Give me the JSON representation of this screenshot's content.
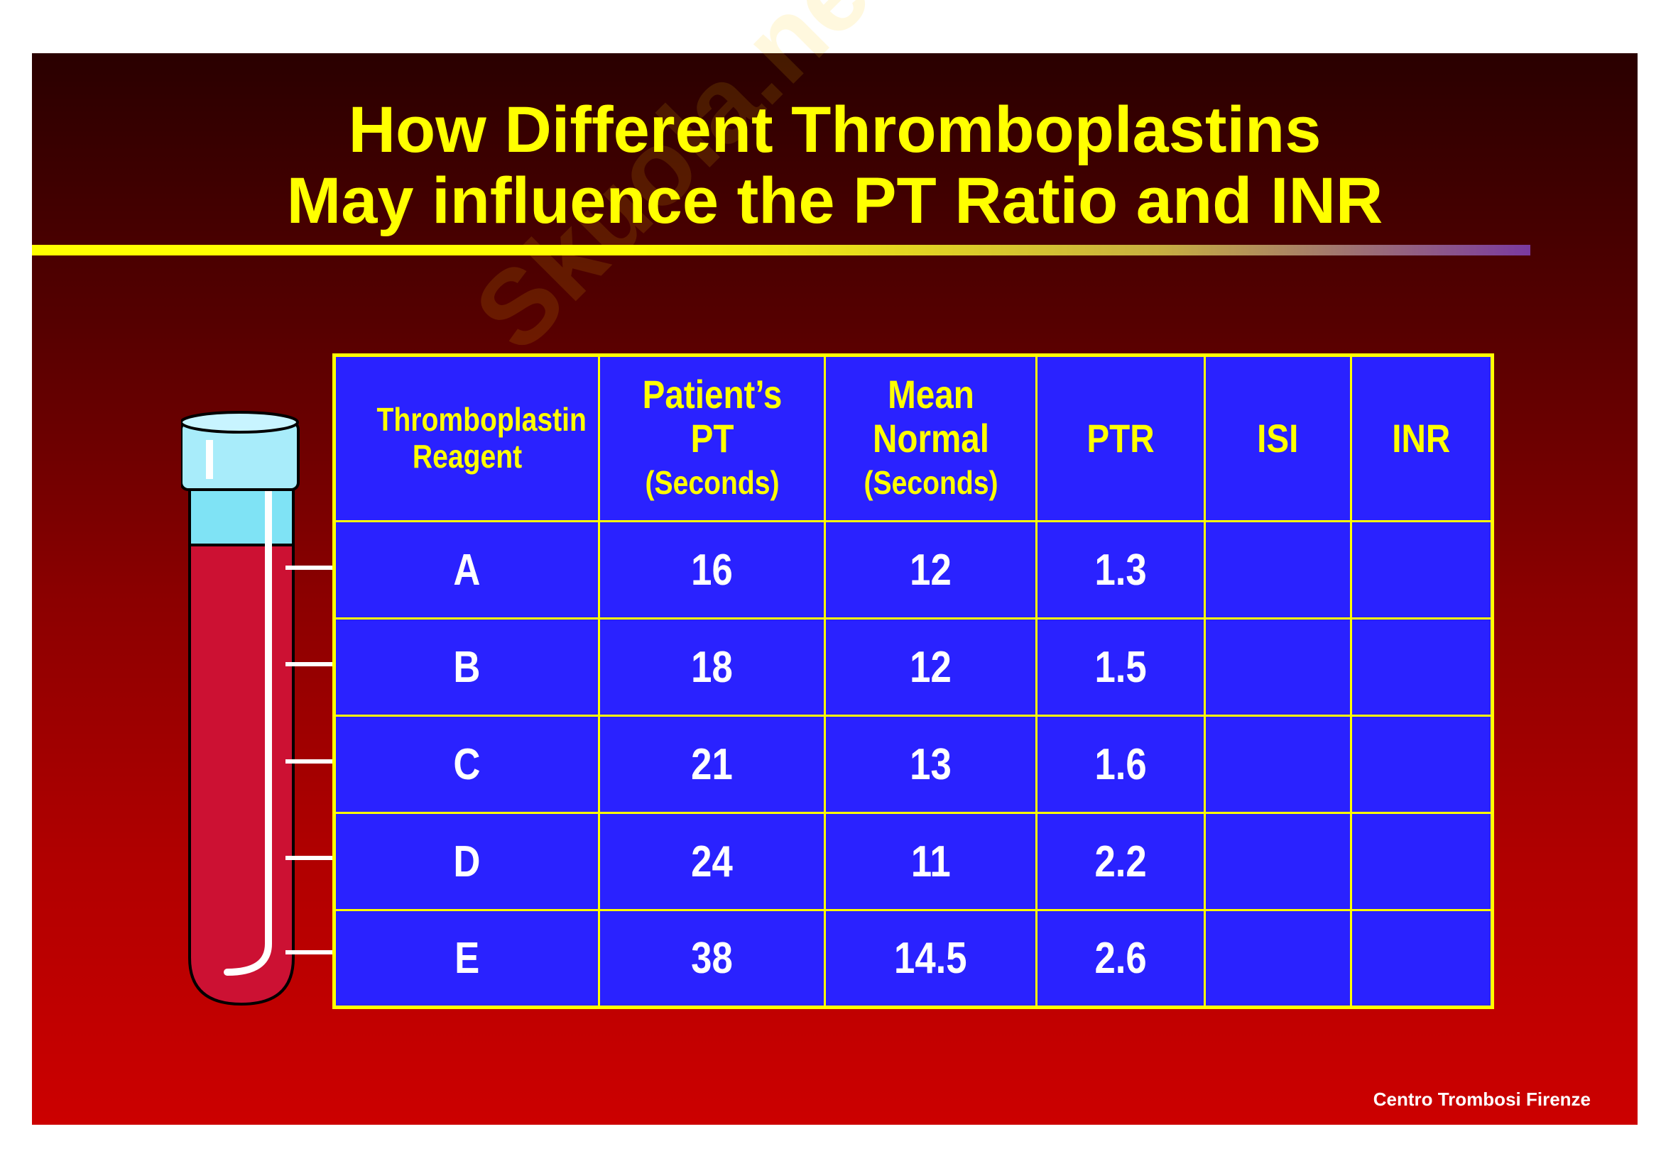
{
  "title": {
    "line1": "How Different Thromboplastins",
    "line2": "May influence the PT Ratio and INR"
  },
  "watermark": "Skuola.net",
  "table": {
    "headers": [
      {
        "main": "Thromboplastin Reagent",
        "sub": ""
      },
      {
        "main": "Patient’s PT",
        "sub": "(Seconds)"
      },
      {
        "main": "Mean Normal",
        "sub": "(Seconds)"
      },
      {
        "main": "PTR",
        "sub": ""
      },
      {
        "main": "ISI",
        "sub": ""
      },
      {
        "main": "INR",
        "sub": ""
      }
    ],
    "rows": [
      {
        "reagent": "A",
        "pt": "16",
        "mean": "12",
        "ptr": "1.3",
        "isi": "",
        "inr": ""
      },
      {
        "reagent": "B",
        "pt": "18",
        "mean": "12",
        "ptr": "1.5",
        "isi": "",
        "inr": ""
      },
      {
        "reagent": "C",
        "pt": "21",
        "mean": "13",
        "ptr": "1.6",
        "isi": "",
        "inr": ""
      },
      {
        "reagent": "D",
        "pt": "24",
        "mean": "11",
        "ptr": "2.2",
        "isi": "",
        "inr": ""
      },
      {
        "reagent": "E",
        "pt": "38",
        "mean": "14.5",
        "ptr": "2.6",
        "isi": "",
        "inr": ""
      }
    ]
  },
  "footer": "Centro Trombosi Firenze",
  "colors": {
    "title": "#ffff00",
    "table_bg": "#2a22ff",
    "blood": "#cc1133"
  }
}
